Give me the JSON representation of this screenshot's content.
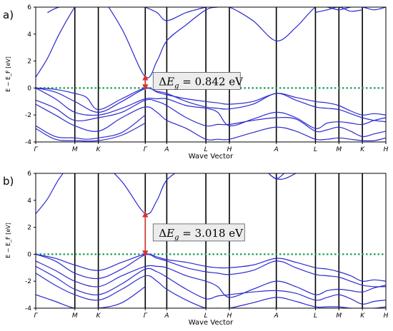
{
  "chart_data": [
    {
      "type": "line",
      "panel_label": "a)",
      "xlabel": "Wave Vector",
      "ylabel": "E − E_F [eV]",
      "ylim": [
        -4,
        6
      ],
      "yticks": [
        -4,
        -2,
        0,
        2,
        4,
        6
      ],
      "kpoints": [
        "Γ",
        "M",
        "K",
        "Γ",
        "A",
        "L",
        "H",
        "A",
        "L",
        "M",
        "K",
        "H"
      ],
      "kpath_positions": [
        0,
        1,
        1.6,
        2.8,
        3.35,
        4.35,
        4.95,
        6.15,
        7.15,
        7.75,
        8.35,
        8.95
      ],
      "fermi_level": 0,
      "gap_label": "0.842",
      "gap_unit": "eV",
      "gap_from": 0,
      "gap_to": 0.842,
      "gap_at": 2.8,
      "bands": [
        {
          "name": "",
          "x": [
            0,
            0.5,
            1,
            1.3,
            1.6,
            2.2,
            2.8,
            3.1,
            3.35,
            3.85,
            4.35,
            4.65,
            4.95,
            5.55,
            6.15,
            6.65,
            7.15,
            7.45,
            7.75,
            8.05,
            8.35,
            8.65,
            8.95
          ],
          "y": [
            0,
            -0.1,
            -0.4,
            -0.7,
            -1.6,
            -0.8,
            0,
            -0.3,
            -0.5,
            -0.8,
            -1.0,
            -1.1,
            -1.2,
            -1.0,
            -0.4,
            -0.7,
            -1.0,
            -1.1,
            -1.3,
            -1.7,
            -2.0,
            -1.9,
            -2.0
          ]
        },
        {
          "name": "",
          "x": [
            0,
            0.5,
            1,
            1.6,
            2.2,
            2.8,
            3.1,
            3.35,
            3.85,
            4.35,
            4.65,
            4.95,
            5.55,
            6.15,
            6.65,
            7.15,
            7.45,
            7.75,
            8.05,
            8.35,
            8.65,
            8.95
          ],
          "y": [
            0,
            -0.3,
            -1.0,
            -1.8,
            -1.0,
            -0.05,
            -0.25,
            -0.4,
            -1.0,
            -1.4,
            -1.5,
            -1.55,
            -1.2,
            -0.4,
            -0.9,
            -1.4,
            -1.5,
            -1.6,
            -1.9,
            -2.2,
            -2.4,
            -2.5
          ]
        },
        {
          "name": "",
          "x": [
            0,
            0.5,
            1,
            1.6,
            2.2,
            2.8,
            3.1,
            3.35,
            3.85,
            4.35,
            4.65,
            4.95,
            5.55,
            6.15,
            6.65,
            7.15,
            7.45,
            7.75,
            8.05,
            8.35,
            8.65,
            8.95
          ],
          "y": [
            0,
            -0.8,
            -1.8,
            -2.0,
            -1.5,
            -0.8,
            -0.8,
            -0.8,
            -1.3,
            -1.5,
            -1.8,
            -2.8,
            -2.3,
            -1.8,
            -2.2,
            -3.0,
            -2.6,
            -2.5,
            -2.6,
            -2.7,
            -2.4,
            -2.2
          ]
        },
        {
          "name": "",
          "x": [
            0,
            0.5,
            1,
            1.6,
            2.2,
            2.8,
            3.1,
            3.35,
            3.85,
            4.35,
            4.65,
            4.95,
            5.55,
            6.15,
            6.65,
            7.15,
            7.45,
            7.75,
            8.05,
            8.35,
            8.65,
            8.95
          ],
          "y": [
            -0.9,
            -1.5,
            -2.4,
            -2.2,
            -1.8,
            -0.9,
            -1.0,
            -1.3,
            -2.2,
            -2.8,
            -2.7,
            -2.7,
            -2.4,
            -2.2,
            -2.3,
            -3.2,
            -3.1,
            -2.9,
            -3.2,
            -3.6,
            -3.4,
            -3.2
          ]
        },
        {
          "name": "",
          "x": [
            0,
            0.5,
            1,
            1.6,
            2.2,
            2.8,
            3.1,
            3.35,
            3.85,
            4.35,
            4.65,
            4.95,
            5.55,
            6.15,
            6.65,
            7.15,
            7.45,
            7.75,
            8.05,
            8.35,
            8.65,
            8.95
          ],
          "y": [
            -1.2,
            -2.0,
            -2.8,
            -3.2,
            -2.2,
            -1.4,
            -1.8,
            -2.4,
            -3.0,
            -3.8,
            -3.8,
            -3.8,
            -3.3,
            -2.9,
            -3.2,
            -3.8,
            -3.8,
            -3.7,
            -3.8,
            -3.9,
            -3.9,
            -3.7
          ]
        },
        {
          "name": "",
          "x": [
            0,
            0.5,
            1,
            1.3,
            1.6,
            2.2,
            2.8
          ],
          "y": [
            -2.8,
            -3.6,
            -3.7,
            -3.8,
            -3.7,
            -3.3,
            -2.0
          ]
        },
        {
          "name": "",
          "x": [
            0,
            0.5,
            1,
            1.6,
            2.2,
            2.8
          ],
          "y": [
            -3.0,
            -3.8,
            -3.9,
            -3.9,
            -3.5,
            -2.6
          ]
        },
        {
          "name": "",
          "x": [
            0,
            0.3,
            0.6,
            1,
            1.3,
            1.6,
            2.2,
            2.8,
            3.1,
            3.35,
            3.85,
            4.35,
            4.65,
            4.95,
            5.55,
            6.15,
            6.65,
            7.15,
            7.45,
            7.75,
            8.05,
            8.35,
            8.65,
            8.95
          ],
          "y": [
            0.8,
            2.2,
            4.0,
            6.0,
            7,
            7,
            4.4,
            0.842,
            2.0,
            3.5,
            4.7,
            5.8,
            6.0,
            6.0,
            5.0,
            3.5,
            4.5,
            6.0,
            6.0,
            5.8,
            6.0,
            6.0,
            5.8,
            6.0
          ]
        },
        {
          "name": "",
          "x": [
            0.3,
            0.6,
            1.0
          ],
          "y": [
            5.6,
            6.0,
            6.0
          ]
        },
        {
          "name": "",
          "x": [
            2.8,
            3.1,
            3.35,
            3.85,
            4.35
          ],
          "y": [
            6.0,
            5.6,
            5.0,
            5.6,
            6.0
          ]
        },
        {
          "name": "",
          "x": [
            7.15,
            7.45,
            7.75,
            8.05,
            8.35
          ],
          "y": [
            5.6,
            5.8,
            6.0,
            5.7,
            5.8
          ]
        }
      ]
    },
    {
      "type": "line",
      "panel_label": "b)",
      "xlabel": "Wave Vector",
      "ylabel": "E − E_F [eV]",
      "ylim": [
        -4,
        6
      ],
      "yticks": [
        -4,
        -2,
        0,
        2,
        4,
        6
      ],
      "kpoints": [
        "Γ",
        "M",
        "K",
        "Γ",
        "A",
        "L",
        "H",
        "A",
        "L",
        "M",
        "K",
        "H"
      ],
      "kpath_positions": [
        0,
        1,
        1.6,
        2.8,
        3.35,
        4.35,
        4.95,
        6.15,
        7.15,
        7.75,
        8.35,
        8.95
      ],
      "fermi_level": 0,
      "gap_label": "3.018",
      "gap_unit": "eV",
      "gap_from": 0,
      "gap_to": 3.018,
      "gap_at": 2.8,
      "bands": [
        {
          "name": "",
          "x": [
            0,
            0.5,
            1,
            1.6,
            2.2,
            2.8,
            3.1,
            3.35,
            3.85,
            4.35,
            4.65,
            4.95,
            5.55,
            6.15,
            6.65,
            7.15,
            7.45,
            7.75,
            8.05,
            8.35,
            8.65,
            8.95
          ],
          "y": [
            0,
            -0.3,
            -0.8,
            -1.2,
            -0.6,
            0,
            -0.2,
            -0.4,
            -0.6,
            -0.9,
            -1.0,
            -1.0,
            -0.8,
            -0.3,
            -0.6,
            -1.0,
            -1.1,
            -1.3,
            -1.6,
            -2.0,
            -1.9,
            -2.0
          ]
        },
        {
          "name": "",
          "x": [
            0,
            0.5,
            1,
            1.6,
            2.2,
            2.8,
            3.1,
            3.35,
            3.85,
            4.35,
            4.65,
            4.95,
            5.55,
            6.15,
            6.65,
            7.15,
            7.45,
            7.75,
            8.05,
            8.35,
            8.65,
            8.95
          ],
          "y": [
            0,
            -0.5,
            -1.4,
            -1.8,
            -1.1,
            -0.05,
            -0.3,
            -0.5,
            -1.0,
            -1.3,
            -1.4,
            -1.5,
            -1.2,
            -0.5,
            -1.0,
            -1.5,
            -1.6,
            -1.7,
            -2.0,
            -2.3,
            -2.4,
            -2.4
          ]
        },
        {
          "name": "",
          "x": [
            0,
            0.5,
            1,
            1.6,
            2.2,
            2.8,
            3.1,
            3.35,
            3.85,
            4.35,
            4.65,
            4.95,
            5.55,
            6.15,
            6.65,
            7.15,
            7.45,
            7.75,
            8.05,
            8.35,
            8.65,
            8.95
          ],
          "y": [
            -0.5,
            -1.2,
            -2.0,
            -2.4,
            -1.6,
            -0.9,
            -0.9,
            -1.0,
            -1.6,
            -2.0,
            -2.4,
            -3.2,
            -2.6,
            -2.0,
            -2.4,
            -3.0,
            -2.7,
            -2.6,
            -2.7,
            -2.8,
            -2.5,
            -2.3
          ]
        },
        {
          "name": "",
          "x": [
            0,
            0.5,
            1,
            1.6,
            2.2,
            2.8,
            3.1,
            3.35,
            3.85,
            4.35,
            4.65,
            4.95,
            5.55,
            6.15,
            6.65,
            7.15,
            7.45,
            7.75,
            8.05,
            8.35,
            8.65,
            8.95
          ],
          "y": [
            -0.9,
            -1.7,
            -2.6,
            -3.0,
            -2.2,
            -1.1,
            -1.3,
            -1.7,
            -2.6,
            -3.3,
            -3.1,
            -3.0,
            -2.8,
            -2.7,
            -2.9,
            -3.4,
            -3.2,
            -3.0,
            -3.3,
            -3.7,
            -3.5,
            -3.4
          ]
        },
        {
          "name": "",
          "x": [
            0,
            0.5,
            1,
            1.6,
            2.2,
            2.8,
            3.1,
            3.35,
            3.85,
            4.35,
            4.65,
            4.95,
            5.55,
            6.15,
            6.65,
            7.15,
            7.45,
            7.75,
            8.05,
            8.35,
            8.65,
            8.95
          ],
          "y": [
            -1.4,
            -2.3,
            -3.0,
            -3.4,
            -2.6,
            -1.6,
            -2.0,
            -2.6,
            -3.4,
            -4.0,
            -4.0,
            -4.0,
            -3.6,
            -3.2,
            -3.5,
            -3.9,
            -3.9,
            -3.9,
            -4.0,
            -4.0,
            -4.0,
            -3.9
          ]
        },
        {
          "name": "",
          "x": [
            0,
            0.5,
            1,
            1.6,
            2.2,
            2.8
          ],
          "y": [
            -3.0,
            -3.5,
            -4.0,
            -4.0,
            -3.6,
            -2.4
          ]
        },
        {
          "name": "",
          "x": [
            0,
            0.3,
            0.6,
            1,
            1.3,
            1.6,
            2.2,
            2.8,
            3.1,
            3.35,
            3.85,
            4.35,
            4.65,
            4.95,
            5.55,
            6.15,
            6.65,
            7.15,
            7.45,
            7.75,
            8.05,
            8.35,
            8.65,
            8.95
          ],
          "y": [
            3.0,
            4.1,
            5.6,
            7,
            7,
            7,
            5.4,
            3.018,
            4.0,
            5.5,
            6.5,
            7,
            7,
            7,
            7,
            5.6,
            6.0,
            7,
            7,
            7,
            7,
            7,
            7,
            7
          ]
        },
        {
          "name": "",
          "x": [
            5.95,
            6.15,
            6.35
          ],
          "y": [
            6.0,
            5.6,
            6.0
          ]
        }
      ]
    }
  ]
}
